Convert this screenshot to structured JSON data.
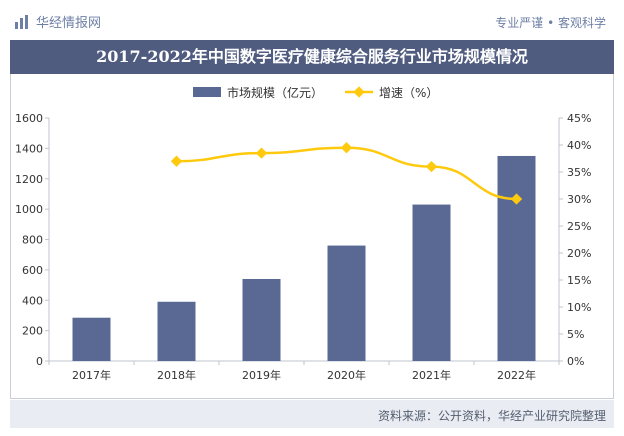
{
  "header": {
    "brand": "华经情报网",
    "brand_icon": "chart-logo-icon",
    "tagline": "专业严谨 • 客观科学"
  },
  "footer": {
    "source": "资料来源：公开资料，华经产业研究院整理"
  },
  "colors": {
    "bar": "#5a6994",
    "line": "#ffc90e",
    "title_band": "#4f5b7f"
  },
  "chart_data": {
    "type": "bar",
    "title": "2017-2022年中国数字医疗健康综合服务行业市场规模情况",
    "categories": [
      "2017年",
      "2018年",
      "2019年",
      "2020年",
      "2021年",
      "2022年"
    ],
    "series": [
      {
        "name": "市场规模（亿元）",
        "type": "bar",
        "axis": "left",
        "values": [
          285,
          390,
          540,
          760,
          1030,
          1350
        ]
      },
      {
        "name": "增速（%）",
        "type": "line",
        "axis": "right",
        "values": [
          null,
          37,
          38.5,
          39.5,
          36,
          30
        ]
      }
    ],
    "y_left": {
      "min": 0,
      "max": 1600,
      "ticks": [
        0,
        200,
        400,
        600,
        800,
        1000,
        1200,
        1400,
        1600
      ]
    },
    "y_right": {
      "min": 0,
      "max": 45,
      "ticks": [
        "0%",
        "5%",
        "10%",
        "15%",
        "20%",
        "25%",
        "30%",
        "35%",
        "40%",
        "45%"
      ]
    },
    "grid": false,
    "legend_position": "top-center"
  }
}
